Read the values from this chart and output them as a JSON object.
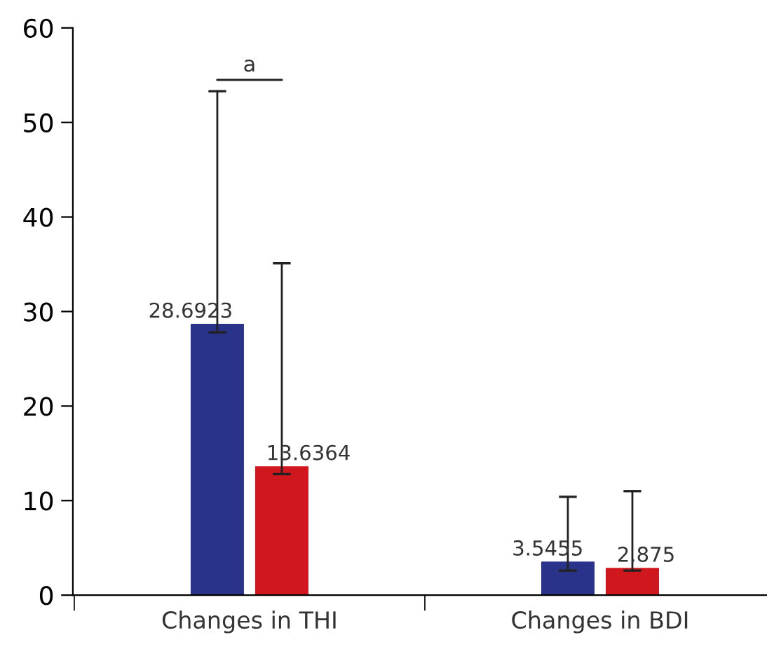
{
  "chart_data": {
    "type": "bar",
    "categories": [
      "Changes in THI",
      "Changes in BDI"
    ],
    "series": [
      {
        "color": "#283389",
        "values": [
          28.6923,
          3.5455
        ],
        "errors": [
          [
            27.8,
            53.3
          ],
          [
            2.6,
            10.4
          ]
        ]
      },
      {
        "color": "#d0171e",
        "values": [
          13.6364,
          2.875
        ],
        "errors": [
          [
            12.8,
            35.1
          ],
          [
            2.6,
            11.0
          ]
        ]
      }
    ],
    "data_labels": true,
    "annotations": [
      "a"
    ],
    "ylim": [
      0,
      60
    ],
    "yticks": [
      0,
      10,
      20,
      30,
      40,
      50,
      60
    ],
    "grid": false,
    "legend": false
  }
}
